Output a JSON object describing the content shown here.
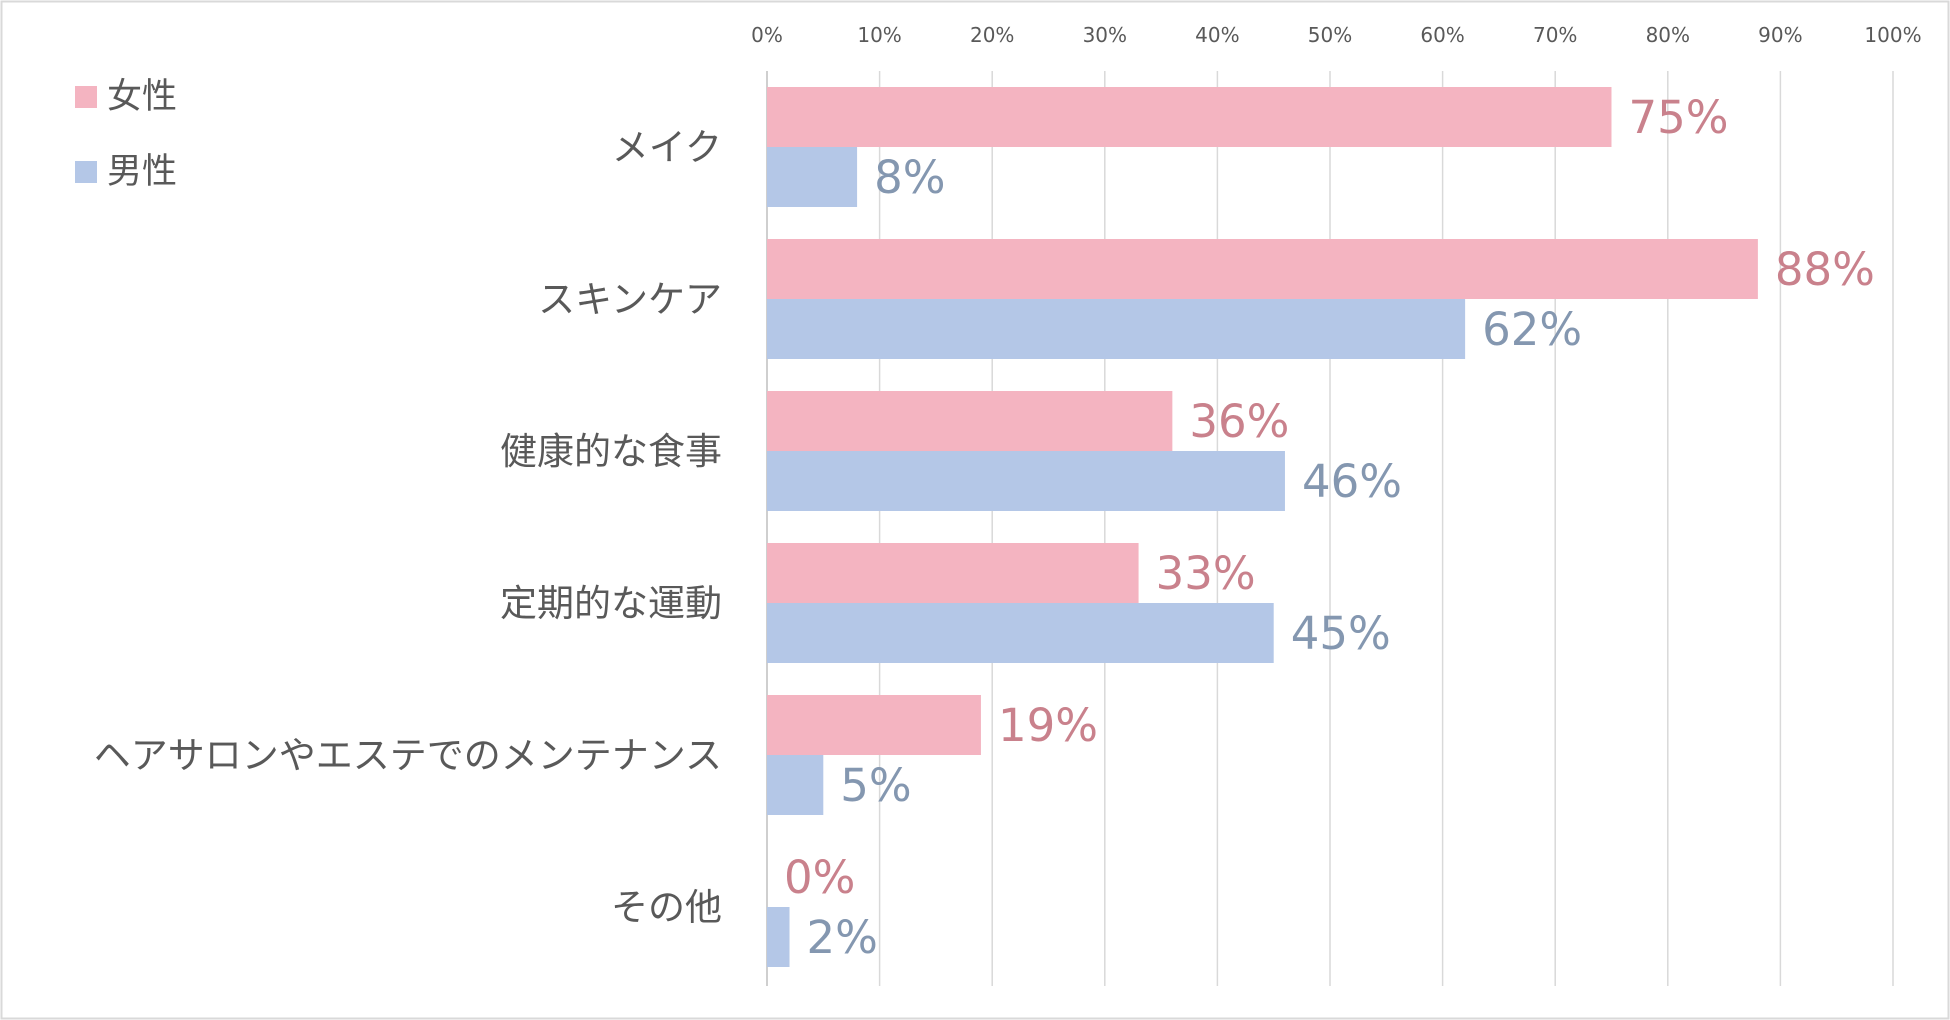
{
  "chart_data": {
    "type": "bar",
    "orientation": "horizontal",
    "categories": [
      "メイク",
      "スキンケア",
      "健康的な食事",
      "定期的な運動",
      "ヘアサロンやエステでのメンテナンス",
      "その他"
    ],
    "series": [
      {
        "name": "女性",
        "values": [
          75,
          88,
          36,
          33,
          19,
          0
        ],
        "color": "#F4B4C1",
        "label_color": "#C9818C"
      },
      {
        "name": "男性",
        "values": [
          8,
          62,
          46,
          45,
          5,
          2
        ],
        "color": "#B4C7E7",
        "label_color": "#8497B0"
      }
    ],
    "xlim": [
      0,
      100
    ],
    "xticks": [
      "0%",
      "10%",
      "20%",
      "30%",
      "40%",
      "50%",
      "60%",
      "70%",
      "80%",
      "90%",
      "100%"
    ],
    "value_suffix": "%",
    "grid": true,
    "axis_position": "top",
    "legend": "top-left"
  }
}
